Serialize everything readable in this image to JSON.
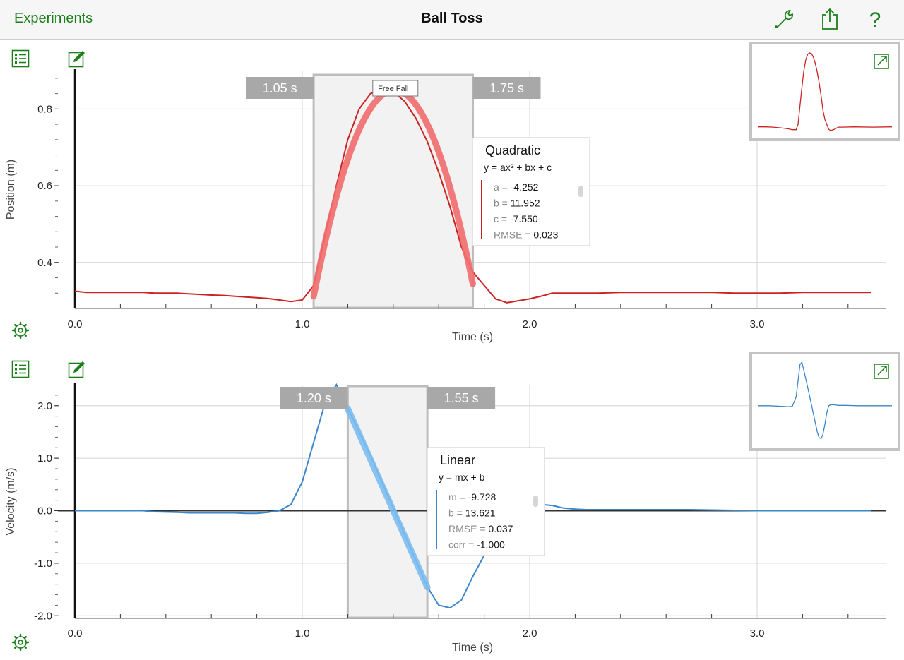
{
  "nav": {
    "back_label": "Experiments",
    "title": "Ball Toss"
  },
  "icons": {
    "wrench": "wrench-icon",
    "share": "share-icon",
    "help": "help-icon",
    "table": "table-icon",
    "edit": "edit-icon",
    "settings": "gear-icon",
    "expand": "expand-icon"
  },
  "colors": {
    "accent": "#1a7f1a",
    "position_series": "#cc2222",
    "position_fit": "#f26c6c",
    "velocity_series": "#3d86c8",
    "velocity_fit": "#7cbcf0",
    "selection_fill": "#f2f2f2",
    "selection_border": "#bdbdbd",
    "marker_bg": "#a8a8a8"
  },
  "chart_data": [
    {
      "type": "line",
      "xlabel": "Time (s)",
      "ylabel": "Position (m)",
      "xlim": [
        -0.1,
        3.6
      ],
      "ylim": [
        0.28,
        0.9
      ],
      "x_ticks": [
        0.0,
        1.0,
        2.0,
        3.0
      ],
      "x_tick_labels": [
        "0.0",
        "1.0",
        "2.0",
        "3.0"
      ],
      "y_ticks": [
        0.4,
        0.6,
        0.8
      ],
      "y_tick_labels": [
        "0.4",
        "0.6",
        "0.8"
      ],
      "grid": true,
      "series": [
        {
          "x": [
            0.0,
            0.05,
            0.1,
            0.2,
            0.3,
            0.35,
            0.45,
            0.5,
            0.6,
            0.65,
            0.7,
            0.8,
            0.85,
            0.9,
            0.95,
            1.0,
            1.05,
            1.1,
            1.15,
            1.2,
            1.25,
            1.3,
            1.35,
            1.4,
            1.45,
            1.5,
            1.55,
            1.6,
            1.65,
            1.7,
            1.75,
            1.8,
            1.85,
            1.9,
            1.95,
            2.0,
            2.05,
            2.1,
            2.15,
            2.2,
            2.3,
            2.4,
            2.5,
            2.6,
            2.7,
            2.8,
            2.9,
            3.0,
            3.1,
            3.2,
            3.3,
            3.4,
            3.5
          ],
          "y": [
            0.325,
            0.322,
            0.322,
            0.322,
            0.322,
            0.32,
            0.32,
            0.318,
            0.315,
            0.314,
            0.312,
            0.308,
            0.306,
            0.302,
            0.298,
            0.302,
            0.34,
            0.47,
            0.6,
            0.72,
            0.8,
            0.84,
            0.85,
            0.845,
            0.82,
            0.775,
            0.715,
            0.635,
            0.545,
            0.44,
            0.375,
            0.34,
            0.305,
            0.295,
            0.3,
            0.305,
            0.312,
            0.32,
            0.32,
            0.32,
            0.32,
            0.322,
            0.322,
            0.322,
            0.322,
            0.322,
            0.32,
            0.32,
            0.32,
            0.322,
            0.322,
            0.322,
            0.322
          ]
        }
      ],
      "selection": {
        "start": 1.05,
        "end": 1.75,
        "start_label": "1.05 s",
        "end_label": "1.75 s",
        "tag": "Free Fall"
      },
      "fit": {
        "title": "Quadratic",
        "equation": "y = ax² + bx + c",
        "params": [
          {
            "name": "a = ",
            "value": "-4.252"
          },
          {
            "name": "b = ",
            "value": "11.952"
          },
          {
            "name": "c = ",
            "value": "-7.550"
          },
          {
            "name": "RMSE = ",
            "value": "0.023"
          }
        ],
        "coeffs": {
          "a": -4.252,
          "b": 11.952,
          "c": -7.55
        },
        "range": [
          1.05,
          1.75
        ]
      },
      "mini": {
        "x": [
          0.0,
          0.2,
          0.4,
          0.6,
          0.8,
          0.9,
          1.0,
          1.05,
          1.1,
          1.15,
          1.2,
          1.25,
          1.3,
          1.35,
          1.4,
          1.45,
          1.5,
          1.55,
          1.6,
          1.65,
          1.7,
          1.75,
          1.8,
          1.85,
          1.9,
          2.0,
          2.1,
          2.2,
          2.5,
          3.0,
          3.5
        ],
        "y": [
          0.322,
          0.322,
          0.32,
          0.315,
          0.308,
          0.302,
          0.302,
          0.34,
          0.47,
          0.6,
          0.72,
          0.8,
          0.84,
          0.85,
          0.845,
          0.82,
          0.775,
          0.715,
          0.635,
          0.545,
          0.44,
          0.375,
          0.34,
          0.305,
          0.295,
          0.305,
          0.32,
          0.32,
          0.322,
          0.32,
          0.322
        ],
        "xlim": [
          0.0,
          3.5
        ],
        "ylim": [
          0.27,
          0.88
        ]
      }
    },
    {
      "type": "line",
      "xlabel": "Time (s)",
      "ylabel": "Velocity (m/s)",
      "xlim": [
        -0.1,
        3.6
      ],
      "ylim": [
        -2.05,
        2.4
      ],
      "x_ticks": [
        0.0,
        1.0,
        2.0,
        3.0
      ],
      "x_tick_labels": [
        "0.0",
        "1.0",
        "2.0",
        "3.0"
      ],
      "y_ticks": [
        -2.0,
        -1.0,
        0.0,
        1.0,
        2.0
      ],
      "y_tick_labels": [
        "-2.0",
        "-1.0",
        "0.0",
        "1.0",
        "2.0"
      ],
      "grid": true,
      "series": [
        {
          "x": [
            0.0,
            0.1,
            0.2,
            0.3,
            0.35,
            0.45,
            0.5,
            0.55,
            0.65,
            0.7,
            0.75,
            0.8,
            0.85,
            0.9,
            0.95,
            1.0,
            1.05,
            1.1,
            1.15,
            1.2,
            1.25,
            1.3,
            1.35,
            1.4,
            1.45,
            1.5,
            1.55,
            1.6,
            1.65,
            1.7,
            1.75,
            1.8,
            1.85,
            1.9,
            1.95,
            2.0,
            2.05,
            2.1,
            2.15,
            2.2,
            2.25,
            2.3,
            2.5,
            2.7,
            3.0,
            3.2,
            3.5
          ],
          "y": [
            0.0,
            0.0,
            0.0,
            0.0,
            -0.02,
            -0.03,
            -0.04,
            -0.04,
            -0.04,
            -0.04,
            -0.05,
            -0.05,
            -0.03,
            0.0,
            0.12,
            0.55,
            1.3,
            2.05,
            2.4,
            1.95,
            1.5,
            1.05,
            0.55,
            0.05,
            -0.45,
            -0.95,
            -1.45,
            -1.8,
            -1.85,
            -1.7,
            -1.25,
            -0.85,
            -0.45,
            -0.15,
            0.05,
            0.12,
            0.12,
            0.1,
            0.05,
            0.03,
            0.02,
            0.02,
            0.02,
            0.02,
            0.0,
            0.0,
            0.0
          ]
        }
      ],
      "selection": {
        "start": 1.2,
        "end": 1.55,
        "start_label": "1.20 s",
        "end_label": "1.55 s"
      },
      "fit": {
        "title": "Linear",
        "equation": "y = mx + b",
        "params": [
          {
            "name": "m = ",
            "value": "-9.728"
          },
          {
            "name": "b = ",
            "value": "13.621"
          },
          {
            "name": "RMSE = ",
            "value": "0.037"
          },
          {
            "name": "corr = ",
            "value": "-1.000"
          }
        ],
        "coeffs": {
          "m": -9.728,
          "b": 13.621
        },
        "range": [
          1.2,
          1.55
        ]
      },
      "mini": {
        "x": [
          0.0,
          0.3,
          0.8,
          0.9,
          1.0,
          1.05,
          1.1,
          1.15,
          1.2,
          1.3,
          1.4,
          1.5,
          1.55,
          1.6,
          1.65,
          1.7,
          1.75,
          1.8,
          1.85,
          1.9,
          2.0,
          2.1,
          2.3,
          2.6,
          3.0,
          3.5
        ],
        "y": [
          0.0,
          0.0,
          -0.05,
          -0.03,
          0.5,
          1.4,
          2.3,
          2.45,
          2.0,
          1.05,
          0.05,
          -0.95,
          -1.45,
          -1.8,
          -1.85,
          -1.6,
          -1.05,
          -0.4,
          0.0,
          0.05,
          0.05,
          0.02,
          0.02,
          0.0,
          0.0,
          0.0
        ],
        "xlim": [
          0.0,
          3.5
        ],
        "ylim": [
          -2.15,
          2.65
        ]
      }
    }
  ]
}
